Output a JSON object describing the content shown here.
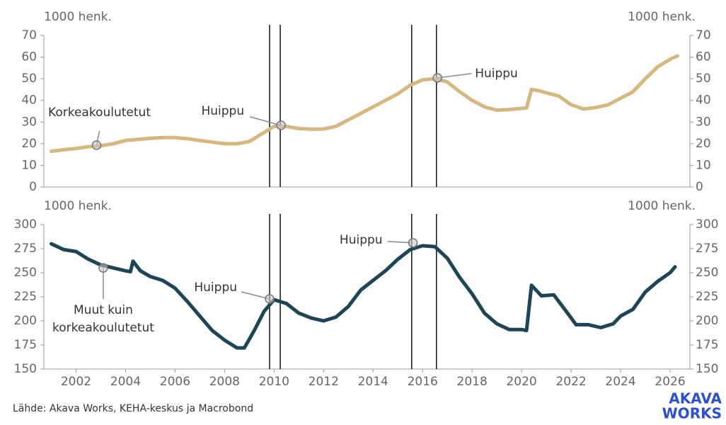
{
  "chart_data": [
    {
      "type": "line",
      "ylabel": "1000 henk.",
      "y2label": "1000 henk.",
      "xlim": [
        2000.7,
        2026.8
      ],
      "ylim": [
        0,
        70
      ],
      "yticks": [
        0,
        10,
        20,
        30,
        40,
        50,
        60,
        70
      ],
      "y2lim": [
        0,
        70
      ],
      "y2ticks": [
        0,
        10,
        20,
        30,
        40,
        50,
        60,
        70
      ],
      "x": [
        2001.0,
        2001.5,
        2002,
        2002.5,
        2003,
        2003.5,
        2004,
        2004.5,
        2005,
        2005.5,
        2006,
        2006.5,
        2007,
        2007.5,
        2008,
        2008.5,
        2009,
        2009.5,
        2010,
        2010.5,
        2011,
        2011.5,
        2012,
        2012.5,
        2013,
        2013.5,
        2014,
        2014.5,
        2015,
        2015.5,
        2016,
        2016.5,
        2017,
        2017.5,
        2018,
        2018.5,
        2019,
        2019.5,
        2020,
        2020.2,
        2020.4,
        2020.7,
        2021,
        2021.5,
        2022,
        2022.5,
        2023,
        2023.5,
        2024,
        2024.5,
        2025,
        2025.5,
        2026,
        2026.3
      ],
      "series": [
        {
          "name": "Korkeakoulutetut",
          "color": "#d6b77e",
          "values": [
            16.5,
            17.2,
            17.8,
            18.6,
            19,
            20,
            21.5,
            22,
            22.5,
            22.8,
            22.8,
            22.3,
            21.5,
            20.7,
            20,
            20,
            21,
            24.5,
            28,
            28,
            27,
            26.7,
            26.8,
            28,
            31,
            34,
            37,
            40,
            43,
            47,
            49.5,
            50,
            48.5,
            44,
            40,
            37,
            35.5,
            35.8,
            36.3,
            36.5,
            45,
            44.5,
            43.5,
            42,
            38,
            36,
            36.7,
            38,
            41,
            44,
            50,
            55.5,
            59,
            60.5
          ]
        }
      ],
      "vlines": [
        2009.82,
        2010.25,
        2015.56,
        2016.56
      ],
      "annotations": [
        {
          "text": [
            "Korkeakoulutetut"
          ],
          "x": 2002.83,
          "y": 19.3
        },
        {
          "text": [
            "Huippu"
          ],
          "x": 2010.28,
          "y": 28.5
        },
        {
          "text": [
            "Huippu"
          ],
          "x": 2016.6,
          "y": 50.4
        }
      ]
    },
    {
      "type": "line",
      "ylabel": "1000 henk.",
      "y2label": "1000 henk.",
      "xlim": [
        2000.7,
        2026.8
      ],
      "xticks": [
        2002,
        2004,
        2006,
        2008,
        2010,
        2012,
        2014,
        2016,
        2018,
        2020,
        2022,
        2024,
        2026
      ],
      "ylim": [
        150,
        300
      ],
      "yticks": [
        150,
        175,
        200,
        225,
        250,
        275,
        300
      ],
      "y2lim": [
        150,
        300
      ],
      "y2ticks": [
        150,
        175,
        200,
        225,
        250,
        275,
        300
      ],
      "x": [
        2001.0,
        2001.5,
        2002,
        2002.5,
        2003,
        2003.5,
        2004,
        2004.2,
        2004.3,
        2004.6,
        2005,
        2005.5,
        2006,
        2006.5,
        2007,
        2007.5,
        2008,
        2008.5,
        2008.8,
        2009.2,
        2009.6,
        2010,
        2010.5,
        2011,
        2011.5,
        2012,
        2012.5,
        2013,
        2013.5,
        2014,
        2014.5,
        2015,
        2015.5,
        2016,
        2016.5,
        2017,
        2017.5,
        2018,
        2018.5,
        2019,
        2019.5,
        2020,
        2020.2,
        2020.4,
        2020.8,
        2021.3,
        2021.8,
        2022.2,
        2022.7,
        2023.2,
        2023.7,
        2024,
        2024.5,
        2025,
        2025.5,
        2026,
        2026.2
      ],
      "series": [
        {
          "name": "Muut kuin korkeakoulutetut",
          "color": "#1d4457",
          "values": [
            280,
            274,
            272,
            264,
            258,
            255,
            252,
            251,
            262,
            252,
            246,
            242,
            234,
            220,
            205,
            190,
            180,
            172,
            172,
            190,
            210,
            222,
            218,
            208,
            203,
            200,
            204,
            215,
            232,
            242,
            252,
            264,
            274,
            278,
            277,
            265,
            245,
            228,
            208,
            197,
            191,
            191,
            190,
            237,
            226,
            227,
            210,
            196,
            196,
            193,
            197,
            205,
            212,
            230,
            241,
            250,
            256
          ]
        }
      ],
      "vlines": [
        2009.82,
        2010.25,
        2015.56,
        2016.56
      ],
      "annotations": [
        {
          "text": [
            "Muut kuin",
            "korkeakoulutetut"
          ],
          "x": 2003.1,
          "y": 255
        },
        {
          "text": [
            "Huippu"
          ],
          "x": 2009.82,
          "y": 222.8
        },
        {
          "text": [
            "Huippu"
          ],
          "x": 2015.61,
          "y": 281
        }
      ]
    }
  ],
  "source": "Lähde: Akava Works, KEHA-keskus ja Macrobond",
  "logo": [
    "AKAVA",
    "WORKS"
  ]
}
